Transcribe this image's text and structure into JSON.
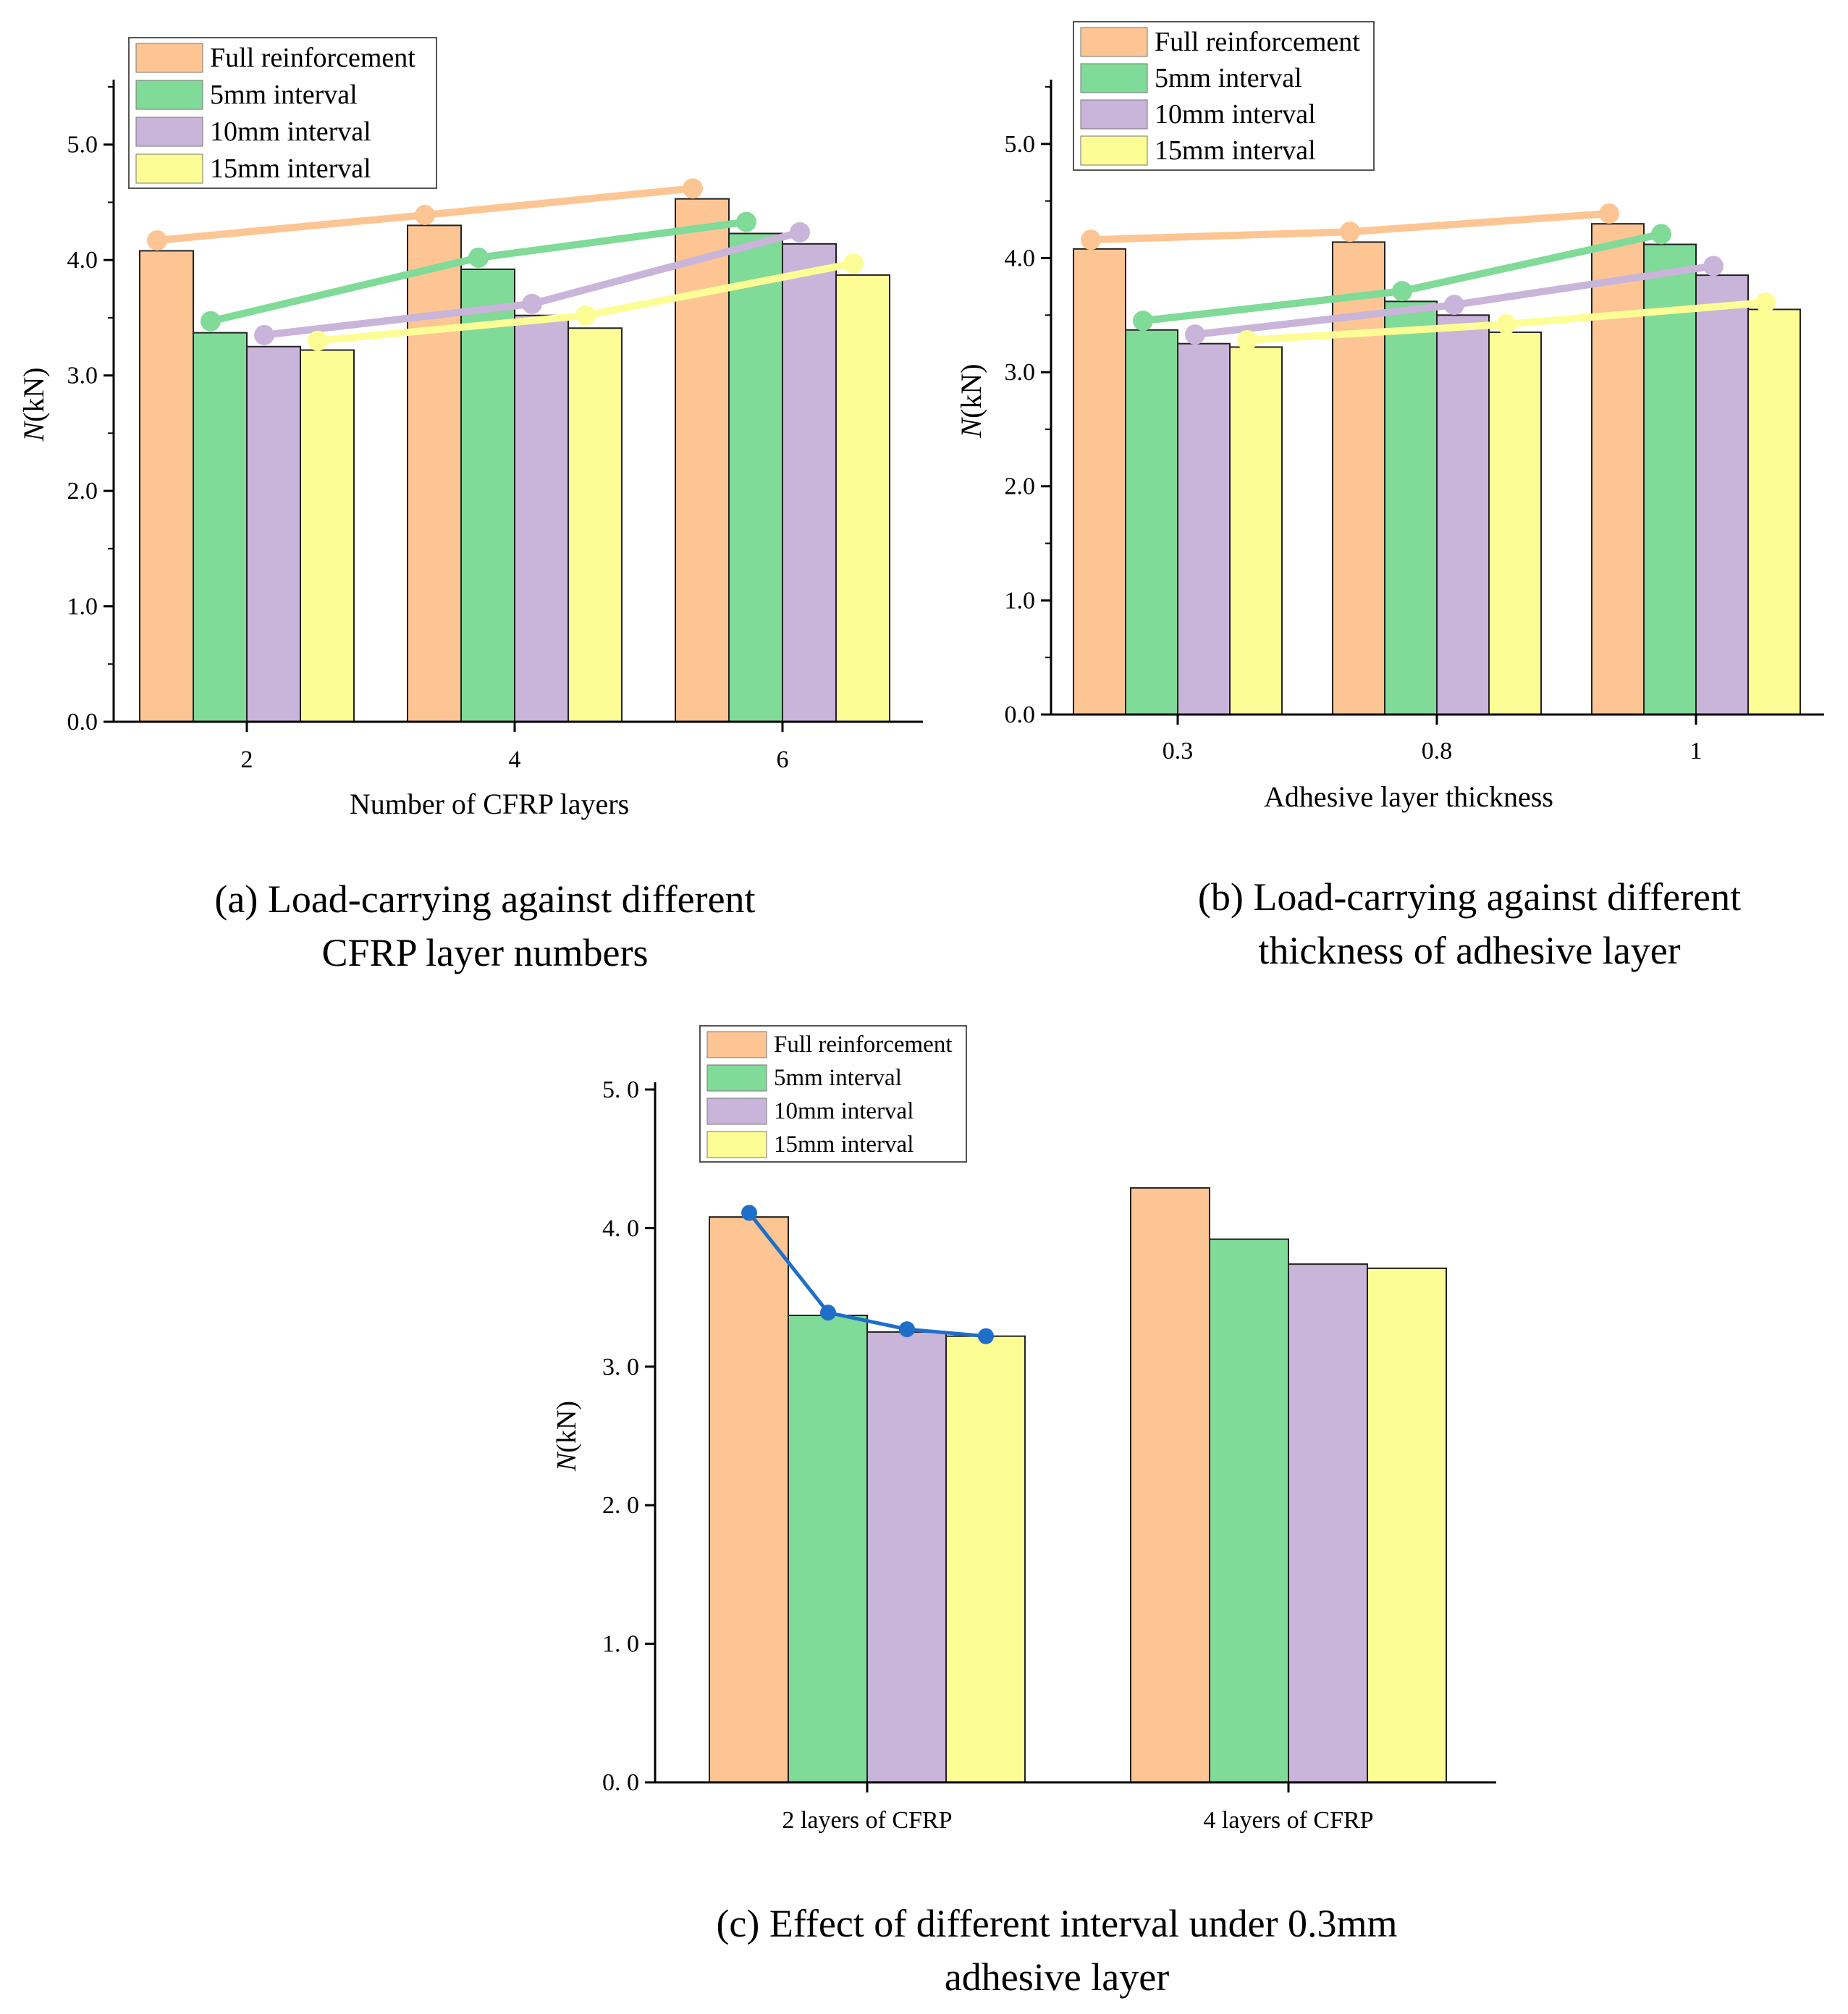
{
  "legend_labels": [
    "Full reinforcement",
    "5mm interval",
    "10mm interval",
    "15mm interval"
  ],
  "colors": {
    "bar_fill": [
      "#FDC593",
      "#80DA98",
      "#C9B4DA",
      "#FDFD96"
    ],
    "line_marker": [
      "#FDC593",
      "#80DA98",
      "#C9B4DA",
      "#FDFD96"
    ],
    "line_c": "#1F6FC9"
  },
  "chart_data": [
    {
      "id": "a",
      "type": "bar",
      "xlabel": "Number of CFRP layers",
      "ylabel_italic": "N",
      "ylabel_rest": "(kN)",
      "categories": [
        "2",
        "4",
        "6"
      ],
      "ylim": [
        0,
        5.5
      ],
      "yticks": [
        "0.0",
        "1.0",
        "2.0",
        "3.0",
        "4.0",
        "5.0"
      ],
      "series": [
        {
          "name": "Full reinforcement",
          "values": [
            4.08,
            4.3,
            4.53
          ]
        },
        {
          "name": "5mm interval",
          "values": [
            3.37,
            3.92,
            4.23
          ]
        },
        {
          "name": "10mm interval",
          "values": [
            3.25,
            3.52,
            4.14
          ]
        },
        {
          "name": "15mm interval",
          "values": [
            3.22,
            3.41,
            3.87
          ]
        }
      ],
      "lines": [
        {
          "name": "Full reinforcement",
          "values": [
            4.17,
            4.39,
            4.62
          ]
        },
        {
          "name": "5mm interval",
          "values": [
            3.47,
            4.02,
            4.33
          ]
        },
        {
          "name": "10mm interval",
          "values": [
            3.35,
            3.62,
            4.24
          ]
        },
        {
          "name": "15mm interval",
          "values": [
            3.3,
            3.52,
            3.97
          ]
        }
      ],
      "caption": [
        "(a) Load-carrying against different",
        "CFRP layer numbers"
      ]
    },
    {
      "id": "b",
      "type": "bar",
      "xlabel": "Adhesive layer thickness",
      "ylabel_italic": "N",
      "ylabel_rest": "(kN)",
      "categories": [
        "0.3",
        "0.8",
        "1"
      ],
      "ylim": [
        0,
        5.5
      ],
      "yticks": [
        "0.0",
        "1.0",
        "2.0",
        "3.0",
        "4.0",
        "5.0"
      ],
      "series": [
        {
          "name": "Full reinforcement",
          "values": [
            4.08,
            4.14,
            4.3
          ]
        },
        {
          "name": "5mm interval",
          "values": [
            3.37,
            3.62,
            4.12
          ]
        },
        {
          "name": "10mm interval",
          "values": [
            3.25,
            3.5,
            3.85
          ]
        },
        {
          "name": "15mm interval",
          "values": [
            3.22,
            3.35,
            3.55
          ]
        }
      ],
      "lines": [
        {
          "name": "Full reinforcement",
          "values": [
            4.16,
            4.23,
            4.39
          ]
        },
        {
          "name": "5mm interval",
          "values": [
            3.45,
            3.71,
            4.21
          ]
        },
        {
          "name": "10mm interval",
          "values": [
            3.33,
            3.59,
            3.93
          ]
        },
        {
          "name": "15mm interval",
          "values": [
            3.28,
            3.42,
            3.61
          ]
        }
      ],
      "caption": [
        "(b) Load-carrying against different",
        "thickness of adhesive layer"
      ]
    },
    {
      "id": "c",
      "type": "bar",
      "xlabel": "",
      "ylabel_italic": "N",
      "ylabel_rest": "(kN)",
      "categories": [
        "2 layers of CFRP",
        "4 layers of CFRP"
      ],
      "ylim": [
        0,
        5.0
      ],
      "yticks": [
        "0. 0",
        "1. 0",
        "2. 0",
        "3. 0",
        "4. 0",
        "5. 0"
      ],
      "series": [
        {
          "name": "Full reinforcement",
          "values": [
            4.08,
            4.29
          ]
        },
        {
          "name": "5mm interval",
          "values": [
            3.37,
            3.92
          ]
        },
        {
          "name": "10mm interval",
          "values": [
            3.25,
            3.74
          ]
        },
        {
          "name": "15mm interval",
          "values": [
            3.22,
            3.71
          ]
        }
      ],
      "trend_line": {
        "category_index": 0,
        "values": [
          4.11,
          3.39,
          3.27,
          3.22
        ]
      },
      "caption": [
        "(c) Effect of different interval under 0.3mm",
        "adhesive layer"
      ]
    }
  ]
}
